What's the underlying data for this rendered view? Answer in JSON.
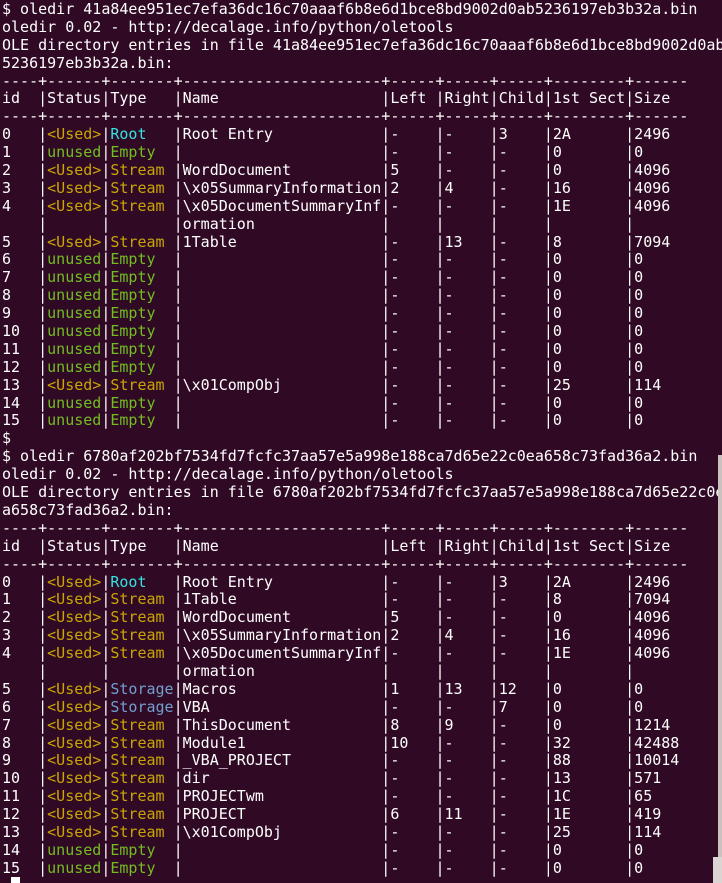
{
  "colors": {
    "background": "#300A24",
    "foreground": "#FFFFFF",
    "yellow": "#C9A605",
    "green": "#72BE22",
    "cyan": "#34E2E2",
    "blue": "#729FCF",
    "scrollbar_track": "#C9C2BE",
    "scrollbar_thumb": "#DAD5D2"
  },
  "screen": {
    "lines": [
      [
        {
          "t": "$ oledir 41a84ee951ec7efa36dc16c70aaaf6b8e6d1bce8bd9002d0ab5236197eb3b32a.bin"
        }
      ],
      [
        {
          "t": "oledir 0.02 - http://decalage.info/python/oletools"
        }
      ],
      [
        {
          "t": "OLE directory entries in file 41a84ee951ec7efa36dc16c70aaaf6b8e6d1bce8bd9002d0ab"
        }
      ],
      [
        {
          "t": "5236197eb3b32a.bin:"
        }
      ],
      [
        {
          "t": "----+------+-------+----------------------+-----+-----+-----+--------+------"
        }
      ],
      [
        {
          "t": "id  |Status|Type   |Name                  |Left |Right|Child|1st Sect|Size"
        }
      ],
      [
        {
          "t": "----+------+-------+----------------------+-----+-----+-----+--------+------"
        }
      ],
      [
        {
          "t": "0   |"
        },
        {
          "t": "<Used>",
          "c": "y"
        },
        {
          "t": "|"
        },
        {
          "t": "Root   ",
          "c": "c"
        },
        {
          "t": "|Root Entry            |-    |-    |3    |2A      |2496"
        }
      ],
      [
        {
          "t": "1   |"
        },
        {
          "t": "unused",
          "c": "g"
        },
        {
          "t": "|"
        },
        {
          "t": "Empty  ",
          "c": "g"
        },
        {
          "t": "|                      |-    |-    |-    |0       |0"
        }
      ],
      [
        {
          "t": "2   |"
        },
        {
          "t": "<Used>",
          "c": "y"
        },
        {
          "t": "|"
        },
        {
          "t": "Stream ",
          "c": "y"
        },
        {
          "t": "|WordDocument          |5    |-    |-    |0       |4096"
        }
      ],
      [
        {
          "t": "3   |"
        },
        {
          "t": "<Used>",
          "c": "y"
        },
        {
          "t": "|"
        },
        {
          "t": "Stream ",
          "c": "y"
        },
        {
          "t": "|\\x05SummaryInformation|2    |4    |-    |16      |4096"
        }
      ],
      [
        {
          "t": "4   |"
        },
        {
          "t": "<Used>",
          "c": "y"
        },
        {
          "t": "|"
        },
        {
          "t": "Stream ",
          "c": "y"
        },
        {
          "t": "|\\x05DocumentSummaryInf|-    |-    |-    |1E      |4096"
        }
      ],
      [
        {
          "t": "    |      |       |ormation              |     |     |     |        |"
        }
      ],
      [
        {
          "t": "5   |"
        },
        {
          "t": "<Used>",
          "c": "y"
        },
        {
          "t": "|"
        },
        {
          "t": "Stream ",
          "c": "y"
        },
        {
          "t": "|1Table                |-    |13   |-    |8       |7094"
        }
      ],
      [
        {
          "t": "6   |"
        },
        {
          "t": "unused",
          "c": "g"
        },
        {
          "t": "|"
        },
        {
          "t": "Empty  ",
          "c": "g"
        },
        {
          "t": "|                      |-    |-    |-    |0       |0"
        }
      ],
      [
        {
          "t": "7   |"
        },
        {
          "t": "unused",
          "c": "g"
        },
        {
          "t": "|"
        },
        {
          "t": "Empty  ",
          "c": "g"
        },
        {
          "t": "|                      |-    |-    |-    |0       |0"
        }
      ],
      [
        {
          "t": "8   |"
        },
        {
          "t": "unused",
          "c": "g"
        },
        {
          "t": "|"
        },
        {
          "t": "Empty  ",
          "c": "g"
        },
        {
          "t": "|                      |-    |-    |-    |0       |0"
        }
      ],
      [
        {
          "t": "9   |"
        },
        {
          "t": "unused",
          "c": "g"
        },
        {
          "t": "|"
        },
        {
          "t": "Empty  ",
          "c": "g"
        },
        {
          "t": "|                      |-    |-    |-    |0       |0"
        }
      ],
      [
        {
          "t": "10  |"
        },
        {
          "t": "unused",
          "c": "g"
        },
        {
          "t": "|"
        },
        {
          "t": "Empty  ",
          "c": "g"
        },
        {
          "t": "|                      |-    |-    |-    |0       |0"
        }
      ],
      [
        {
          "t": "11  |"
        },
        {
          "t": "unused",
          "c": "g"
        },
        {
          "t": "|"
        },
        {
          "t": "Empty  ",
          "c": "g"
        },
        {
          "t": "|                      |-    |-    |-    |0       |0"
        }
      ],
      [
        {
          "t": "12  |"
        },
        {
          "t": "unused",
          "c": "g"
        },
        {
          "t": "|"
        },
        {
          "t": "Empty  ",
          "c": "g"
        },
        {
          "t": "|                      |-    |-    |-    |0       |0"
        }
      ],
      [
        {
          "t": "13  |"
        },
        {
          "t": "<Used>",
          "c": "y"
        },
        {
          "t": "|"
        },
        {
          "t": "Stream ",
          "c": "y"
        },
        {
          "t": "|\\x01CompObj           |-    |-    |-    |25      |114"
        }
      ],
      [
        {
          "t": "14  |"
        },
        {
          "t": "unused",
          "c": "g"
        },
        {
          "t": "|"
        },
        {
          "t": "Empty  ",
          "c": "g"
        },
        {
          "t": "|                      |-    |-    |-    |0       |0"
        }
      ],
      [
        {
          "t": "15  |"
        },
        {
          "t": "unused",
          "c": "g"
        },
        {
          "t": "|"
        },
        {
          "t": "Empty  ",
          "c": "g"
        },
        {
          "t": "|                      |-    |-    |-    |0       |0"
        }
      ],
      [
        {
          "t": "$"
        }
      ],
      [
        {
          "t": "$ oledir 6780af202bf7534fd7fcfc37aa57e5a998e188ca7d65e22c0ea658c73fad36a2.bin"
        }
      ],
      [
        {
          "t": "oledir 0.02 - http://decalage.info/python/oletools"
        }
      ],
      [
        {
          "t": "OLE directory entries in file 6780af202bf7534fd7fcfc37aa57e5a998e188ca7d65e22c0e"
        }
      ],
      [
        {
          "t": "a658c73fad36a2.bin:"
        }
      ],
      [
        {
          "t": "----+------+-------+----------------------+-----+-----+-----+--------+------"
        }
      ],
      [
        {
          "t": "id  |Status|Type   |Name                  |Left |Right|Child|1st Sect|Size"
        }
      ],
      [
        {
          "t": "----+------+-------+----------------------+-----+-----+-----+--------+------"
        }
      ],
      [
        {
          "t": "0   |"
        },
        {
          "t": "<Used>",
          "c": "y"
        },
        {
          "t": "|"
        },
        {
          "t": "Root   ",
          "c": "c"
        },
        {
          "t": "|Root Entry            |-    |-    |3    |2A      |2496"
        }
      ],
      [
        {
          "t": "1   |"
        },
        {
          "t": "<Used>",
          "c": "y"
        },
        {
          "t": "|"
        },
        {
          "t": "Stream ",
          "c": "y"
        },
        {
          "t": "|1Table                |-    |-    |-    |8       |7094"
        }
      ],
      [
        {
          "t": "2   |"
        },
        {
          "t": "<Used>",
          "c": "y"
        },
        {
          "t": "|"
        },
        {
          "t": "Stream ",
          "c": "y"
        },
        {
          "t": "|WordDocument          |5    |-    |-    |0       |4096"
        }
      ],
      [
        {
          "t": "3   |"
        },
        {
          "t": "<Used>",
          "c": "y"
        },
        {
          "t": "|"
        },
        {
          "t": "Stream ",
          "c": "y"
        },
        {
          "t": "|\\x05SummaryInformation|2    |4    |-    |16      |4096"
        }
      ],
      [
        {
          "t": "4   |"
        },
        {
          "t": "<Used>",
          "c": "y"
        },
        {
          "t": "|"
        },
        {
          "t": "Stream ",
          "c": "y"
        },
        {
          "t": "|\\x05DocumentSummaryInf|-    |-    |-    |1E      |4096"
        }
      ],
      [
        {
          "t": "    |      |       |ormation              |     |     |     |        |"
        }
      ],
      [
        {
          "t": "5   |"
        },
        {
          "t": "<Used>",
          "c": "y"
        },
        {
          "t": "|"
        },
        {
          "t": "Storage",
          "c": "b"
        },
        {
          "t": "|Macros                |1    |13   |12   |0       |0"
        }
      ],
      [
        {
          "t": "6   |"
        },
        {
          "t": "<Used>",
          "c": "y"
        },
        {
          "t": "|"
        },
        {
          "t": "Storage",
          "c": "b"
        },
        {
          "t": "|VBA                   |-    |-    |7    |0       |0"
        }
      ],
      [
        {
          "t": "7   |"
        },
        {
          "t": "<Used>",
          "c": "y"
        },
        {
          "t": "|"
        },
        {
          "t": "Stream ",
          "c": "y"
        },
        {
          "t": "|ThisDocument          |8    |9    |-    |0       |1214"
        }
      ],
      [
        {
          "t": "8   |"
        },
        {
          "t": "<Used>",
          "c": "y"
        },
        {
          "t": "|"
        },
        {
          "t": "Stream ",
          "c": "y"
        },
        {
          "t": "|Module1               |10   |-    |-    |32      |42488"
        }
      ],
      [
        {
          "t": "9   |"
        },
        {
          "t": "<Used>",
          "c": "y"
        },
        {
          "t": "|"
        },
        {
          "t": "Stream ",
          "c": "y"
        },
        {
          "t": "|_VBA_PROJECT          |-    |-    |-    |88      |10014"
        }
      ],
      [
        {
          "t": "10  |"
        },
        {
          "t": "<Used>",
          "c": "y"
        },
        {
          "t": "|"
        },
        {
          "t": "Stream ",
          "c": "y"
        },
        {
          "t": "|dir                   |-    |-    |-    |13      |571"
        }
      ],
      [
        {
          "t": "11  |"
        },
        {
          "t": "<Used>",
          "c": "y"
        },
        {
          "t": "|"
        },
        {
          "t": "Stream ",
          "c": "y"
        },
        {
          "t": "|PROJECTwm             |-    |-    |-    |1C      |65"
        }
      ],
      [
        {
          "t": "12  |"
        },
        {
          "t": "<Used>",
          "c": "y"
        },
        {
          "t": "|"
        },
        {
          "t": "Stream ",
          "c": "y"
        },
        {
          "t": "|PROJECT               |6    |11   |-    |1E      |419"
        }
      ],
      [
        {
          "t": "13  |"
        },
        {
          "t": "<Used>",
          "c": "y"
        },
        {
          "t": "|"
        },
        {
          "t": "Stream ",
          "c": "y"
        },
        {
          "t": "|\\x01CompObj           |-    |-    |-    |25      |114"
        }
      ],
      [
        {
          "t": "14  |"
        },
        {
          "t": "unused",
          "c": "g"
        },
        {
          "t": "|"
        },
        {
          "t": "Empty  ",
          "c": "g"
        },
        {
          "t": "|                      |-    |-    |-    |0       |0"
        }
      ],
      [
        {
          "t": "15  |"
        },
        {
          "t": "unused",
          "c": "g"
        },
        {
          "t": "|"
        },
        {
          "t": "Empty  ",
          "c": "g"
        },
        {
          "t": "|                      |-    |-    |-    |0       |0"
        }
      ],
      [
        {
          "t": " "
        },
        {
          "t": " ",
          "c": "cur"
        }
      ]
    ]
  }
}
